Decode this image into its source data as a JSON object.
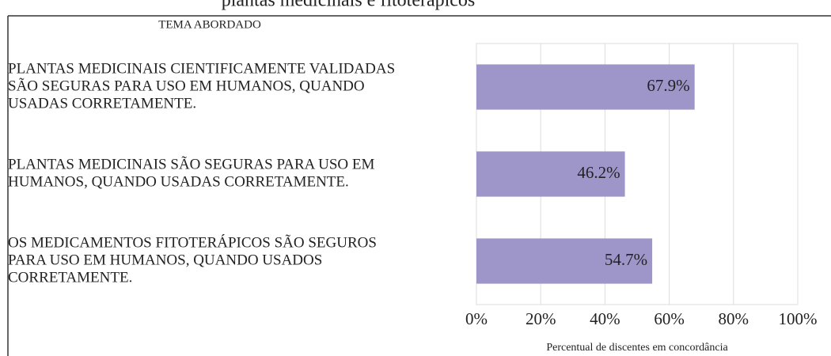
{
  "chart_data": {
    "type": "barh",
    "title": "plantas medicinais e fitoterápicos",
    "header": "TEMA ABORDADO",
    "categories": [
      [
        "PLANTAS MEDICINAIS CIENTIFICAMENTE VALIDADAS",
        "SÃO SEGURAS PARA USO EM HUMANOS, QUANDO",
        "USADAS CORRETAMENTE."
      ],
      [
        "PLANTAS MEDICINAIS SÃO SEGURAS PARA USO EM",
        "HUMANOS, QUANDO USADAS CORRETAMENTE."
      ],
      [
        "OS MEDICAMENTOS FITOTERÁPICOS SÃO SEGUROS",
        "PARA USO EM HUMANOS, QUANDO USADOS",
        "CORRETAMENTE."
      ]
    ],
    "values": [
      67.9,
      46.2,
      54.7
    ],
    "value_labels": [
      "67.9%",
      "46.2%",
      "54.7%"
    ],
    "color": "#9e96c9",
    "xlabel": "Percentual de discentes em concordância",
    "xlim": [
      0,
      100
    ],
    "xticks": [
      {
        "value": 0,
        "label": "0%"
      },
      {
        "value": 20,
        "label": "20%"
      },
      {
        "value": 40,
        "label": "40%"
      },
      {
        "value": 60,
        "label": "60%"
      },
      {
        "value": 80,
        "label": "80%"
      },
      {
        "value": 100,
        "label": "100%"
      }
    ],
    "grid": true
  }
}
